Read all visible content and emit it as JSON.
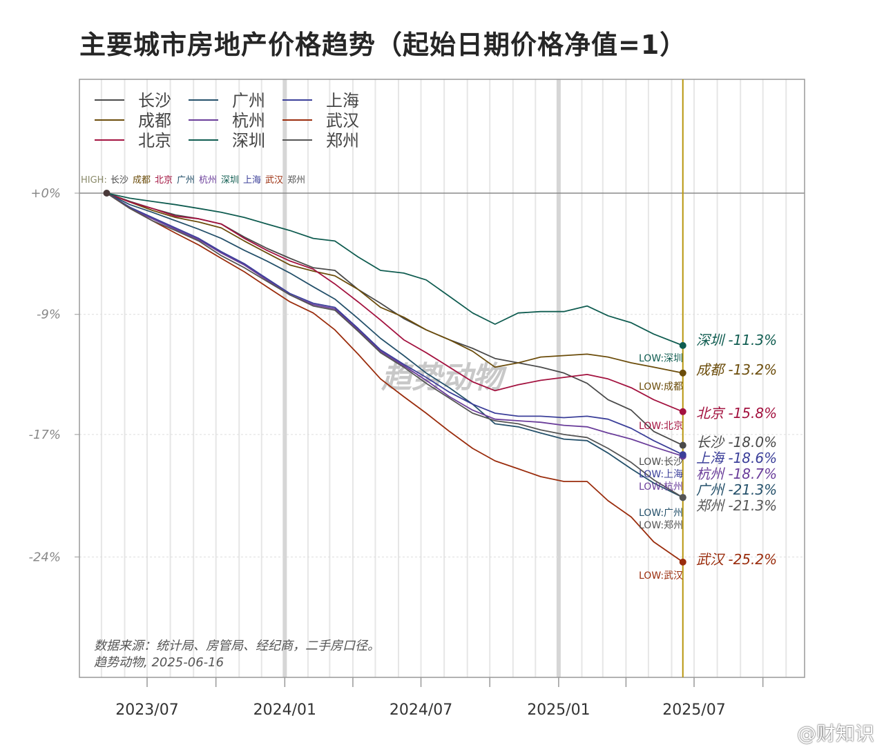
{
  "chart_data": {
    "type": "line",
    "title": "主要城市房地产价格趋势（起始日期价格净值=1）",
    "xlabel": "",
    "ylabel": "",
    "y_scale": "log",
    "x_ticks": [
      {
        "date": "2023-07-01",
        "label": "2023/07"
      },
      {
        "date": "2023-10-01",
        "label": ""
      },
      {
        "date": "2024-01-01",
        "label": "2024/01"
      },
      {
        "date": "2024-04-01",
        "label": ""
      },
      {
        "date": "2024-07-01",
        "label": "2024/07"
      },
      {
        "date": "2024-10-01",
        "label": ""
      },
      {
        "date": "2025-01-01",
        "label": "2025/01"
      },
      {
        "date": "2025-04-01",
        "label": ""
      },
      {
        "date": "2025-07-01",
        "label": "2025/07"
      },
      {
        "date": "2025-10-01",
        "label": ""
      }
    ],
    "y_ticks": [
      {
        "value": 0,
        "label": "+0%"
      },
      {
        "value": -9.1,
        "label": "-9%"
      },
      {
        "value": -17.3,
        "label": "-17%"
      },
      {
        "value": -24.9,
        "label": "-24%"
      }
    ],
    "x_range": [
      "2023-03-20",
      "2025-11-10"
    ],
    "dates": [
      "2023-05-08",
      "2023-06-08",
      "2023-07-08",
      "2023-08-08",
      "2023-09-08",
      "2023-10-08",
      "2023-11-08",
      "2023-12-08",
      "2024-01-08",
      "2024-02-08",
      "2024-03-08",
      "2024-04-08",
      "2024-05-08",
      "2024-06-08",
      "2024-07-08",
      "2024-08-08",
      "2024-09-08",
      "2024-10-08",
      "2024-11-08",
      "2024-12-08",
      "2025-01-08",
      "2025-02-08",
      "2025-03-08",
      "2025-04-08",
      "2025-05-08",
      "2025-06-16"
    ],
    "series": [
      {
        "name": "长沙",
        "color": "#4a4a4a",
        "final_label": "长沙 -18.0%",
        "low_label": "LOW:长沙",
        "values": [
          0,
          -0.65,
          -1.2,
          -1.7,
          -2.0,
          -2.4,
          -3.4,
          -4.25,
          -5.0,
          -5.7,
          -5.9,
          -7.3,
          -8.3,
          -9.4,
          -10.2,
          -10.9,
          -11.5,
          -12.2,
          -12.5,
          -12.8,
          -13.2,
          -13.9,
          -15.0,
          -15.7,
          -17.1,
          -18.0
        ]
      },
      {
        "name": "成都",
        "color": "#6b4c0a",
        "final_label": "成都 -13.2%",
        "low_label": "LOW:成都",
        "values": [
          0,
          -0.7,
          -1.35,
          -1.9,
          -2.25,
          -2.7,
          -3.7,
          -4.6,
          -5.5,
          -5.95,
          -6.3,
          -7.3,
          -8.6,
          -9.3,
          -10.2,
          -10.9,
          -11.7,
          -12.8,
          -12.5,
          -12.1,
          -12.0,
          -11.9,
          -12.1,
          -12.5,
          -12.8,
          -13.2
        ]
      },
      {
        "name": "北京",
        "color": "#a3123f",
        "final_label": "北京 -15.8%",
        "low_label": "LOW:北京",
        "values": [
          0,
          -0.7,
          -1.2,
          -1.8,
          -2.0,
          -2.4,
          -3.5,
          -4.4,
          -5.2,
          -5.8,
          -6.9,
          -8.2,
          -9.5,
          -10.9,
          -11.8,
          -12.8,
          -13.8,
          -14.4,
          -14.0,
          -13.7,
          -13.5,
          -13.3,
          -13.6,
          -14.2,
          -15.0,
          -15.8
        ]
      },
      {
        "name": "广州",
        "color": "#24506a",
        "final_label": "广州 -21.3%",
        "low_label": "LOW:广州",
        "values": [
          0,
          -0.9,
          -1.5,
          -2.15,
          -2.8,
          -3.5,
          -4.4,
          -5.2,
          -6.1,
          -7.1,
          -8.0,
          -9.4,
          -10.8,
          -12.0,
          -13.2,
          -14.2,
          -15.3,
          -16.6,
          -16.8,
          -17.2,
          -17.6,
          -17.7,
          -18.5,
          -19.5,
          -20.4,
          -21.3
        ]
      },
      {
        "name": "杭州",
        "color": "#6a3d9a",
        "final_label": "杭州 -18.7%",
        "low_label": "LOW:杭州",
        "values": [
          0,
          -1.2,
          -2.0,
          -2.8,
          -3.6,
          -4.6,
          -5.5,
          -6.6,
          -7.7,
          -8.4,
          -8.7,
          -10.2,
          -11.7,
          -12.7,
          -13.7,
          -14.8,
          -15.7,
          -16.3,
          -16.4,
          -16.5,
          -16.7,
          -16.8,
          -17.2,
          -17.6,
          -18.1,
          -18.7
        ]
      },
      {
        "name": "深圳",
        "color": "#0f5c50",
        "final_label": "深圳 -11.3%",
        "low_label": "LOW:深圳",
        "values": [
          0,
          -0.4,
          -0.65,
          -0.9,
          -1.2,
          -1.5,
          -1.9,
          -2.4,
          -2.9,
          -3.5,
          -3.7,
          -4.9,
          -5.9,
          -6.1,
          -6.6,
          -7.8,
          -9.0,
          -9.8,
          -9.0,
          -8.9,
          -8.9,
          -8.5,
          -9.2,
          -9.7,
          -10.5,
          -11.3
        ]
      },
      {
        "name": "上海",
        "color": "#3b3f99",
        "final_label": "上海 -18.6%",
        "low_label": "LOW:上海",
        "values": [
          0,
          -1.1,
          -1.9,
          -2.7,
          -3.5,
          -4.5,
          -5.4,
          -6.5,
          -7.6,
          -8.3,
          -8.6,
          -10.1,
          -11.6,
          -12.6,
          -13.5,
          -14.5,
          -15.3,
          -15.9,
          -16.1,
          -16.1,
          -16.2,
          -16.1,
          -16.3,
          -16.9,
          -17.7,
          -18.6
        ]
      },
      {
        "name": "武汉",
        "color": "#9a2c0c",
        "final_label": "武汉 -25.2%",
        "low_label": "LOW:武汉",
        "values": [
          0,
          -1.2,
          -2.15,
          -3.1,
          -4.0,
          -5.0,
          -6.0,
          -7.1,
          -8.2,
          -9.0,
          -10.2,
          -11.9,
          -13.6,
          -14.8,
          -15.9,
          -17.1,
          -18.2,
          -19.0,
          -19.5,
          -20.0,
          -20.3,
          -20.3,
          -21.5,
          -22.5,
          -24.0,
          -25.2
        ]
      },
      {
        "name": "郑州",
        "color": "#555555",
        "final_label": "郑州 -21.3%",
        "low_label": "LOW:郑州",
        "values": [
          0,
          -1.2,
          -2.15,
          -2.9,
          -3.7,
          -4.8,
          -5.7,
          -6.7,
          -7.7,
          -8.5,
          -8.8,
          -10.3,
          -11.8,
          -12.8,
          -13.9,
          -14.9,
          -15.9,
          -16.4,
          -16.6,
          -17.0,
          -17.3,
          -17.5,
          -18.2,
          -19.1,
          -20.2,
          -21.3
        ]
      }
    ],
    "high_label": "HIGH:",
    "high_label_names": "长沙 成都 北京 广州 杭州 深圳 上海 武汉 郑州",
    "current_date_marker": "2025-06-16",
    "marker_color": "#b8960c",
    "legend_position": "top-left",
    "grid": true,
    "watermark": "趋势动物",
    "source_line1": "数据来源：统计局、房管局、经纪商，二手房口径。",
    "source_line2": "趋势动物, 2025-06-16"
  },
  "title": "主要城市房地产价格趋势（起始日期价格净值=1）",
  "weibo_watermark": "@财知识"
}
